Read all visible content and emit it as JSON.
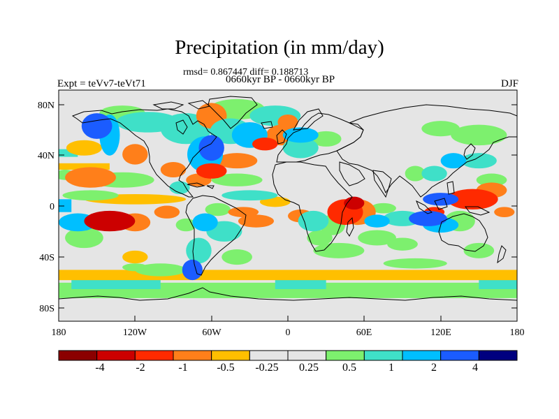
{
  "title": "Precipitation (in mm/day)",
  "stats": "rmsd= 0.867447 diff= 0.188713",
  "period": "0660kyr BP - 0660kyr BP",
  "experiment": "Expt = teVv7-teVt71",
  "season": "DJF",
  "lat_labels": [
    "80N",
    "40N",
    "0",
    "40S",
    "80S"
  ],
  "lon_labels": [
    "180",
    "120W",
    "60W",
    "0",
    "60E",
    "120E",
    "180"
  ],
  "colorbar": {
    "colors": [
      "#8b0000",
      "#cc0000",
      "#ff2a00",
      "#ff7f1a",
      "#ffbf00",
      "#e5e5e5",
      "#e5e5e5",
      "#7df06e",
      "#3fe0c8",
      "#00bfff",
      "#1b5cff",
      "#00007f"
    ],
    "labels": [
      "-4",
      "-2",
      "-1",
      "-0.5",
      "-0.25",
      "0.25",
      "0.5",
      "1",
      "2",
      "4"
    ]
  },
  "chart_data": {
    "type": "heatmap",
    "title": "Precipitation (in mm/day)",
    "variable": "precipitation difference",
    "units": "mm/day",
    "season": "DJF",
    "experiment": "teVv7-teVt71",
    "rmsd": 0.867447,
    "diff": 0.188713,
    "contour_levels": [
      -4,
      -2,
      -1,
      -0.5,
      -0.25,
      0.25,
      0.5,
      1,
      2,
      4
    ],
    "x_range": [
      -180,
      180
    ],
    "y_range": [
      -90,
      90
    ],
    "x_ticks": [
      -180,
      -120,
      -60,
      0,
      60,
      120,
      180
    ],
    "y_ticks": [
      80,
      40,
      0,
      -40,
      -80
    ],
    "blobs": [
      {
        "lon": -150,
        "lat": 62,
        "rx": 12,
        "ry": 10,
        "v": 4
      },
      {
        "lon": -140,
        "lat": 55,
        "rx": 8,
        "ry": 16,
        "v": 2
      },
      {
        "lon": -130,
        "lat": 72,
        "rx": 18,
        "ry": 6,
        "v": 0.5
      },
      {
        "lon": -160,
        "lat": 45,
        "rx": 14,
        "ry": 6,
        "v": -0.5
      },
      {
        "lon": -120,
        "lat": 40,
        "rx": 10,
        "ry": 8,
        "v": -1
      },
      {
        "lon": -110,
        "lat": 65,
        "rx": 25,
        "ry": 8,
        "v": 1
      },
      {
        "lon": -80,
        "lat": 60,
        "rx": 20,
        "ry": 12,
        "v": 1
      },
      {
        "lon": -60,
        "lat": 45,
        "rx": 10,
        "ry": 10,
        "v": 4
      },
      {
        "lon": -65,
        "lat": 40,
        "rx": 14,
        "ry": 14,
        "v": 2
      },
      {
        "lon": -60,
        "lat": 70,
        "rx": 12,
        "ry": 10,
        "v": -1
      },
      {
        "lon": -40,
        "lat": 75,
        "rx": 22,
        "ry": 8,
        "v": 0.5
      },
      {
        "lon": -45,
        "lat": 58,
        "rx": 16,
        "ry": 10,
        "v": 1
      },
      {
        "lon": -30,
        "lat": 55,
        "rx": 14,
        "ry": 10,
        "v": 2
      },
      {
        "lon": -10,
        "lat": 70,
        "rx": 20,
        "ry": 8,
        "v": 1
      },
      {
        "lon": 0,
        "lat": 65,
        "rx": 8,
        "ry": 6,
        "v": -1
      },
      {
        "lon": -5,
        "lat": 55,
        "rx": 12,
        "ry": 8,
        "v": -1
      },
      {
        "lon": -18,
        "lat": 48,
        "rx": 10,
        "ry": 5,
        "v": -2
      },
      {
        "lon": 10,
        "lat": 55,
        "rx": 14,
        "ry": 6,
        "v": 2
      },
      {
        "lon": 10,
        "lat": 45,
        "rx": 14,
        "ry": 8,
        "v": 1
      },
      {
        "lon": 30,
        "lat": 52,
        "rx": 12,
        "ry": 6,
        "v": 0.5
      },
      {
        "lon": -40,
        "lat": 35,
        "rx": 16,
        "ry": 6,
        "v": -1
      },
      {
        "lon": -60,
        "lat": 27,
        "rx": 12,
        "ry": 6,
        "v": -2
      },
      {
        "lon": -90,
        "lat": 28,
        "rx": 10,
        "ry": 6,
        "v": -1
      },
      {
        "lon": -70,
        "lat": 20,
        "rx": 10,
        "ry": 5,
        "v": -1
      },
      {
        "lon": -85,
        "lat": 14,
        "rx": 8,
        "ry": 5,
        "v": 1
      },
      {
        "lon": -130,
        "lat": 20,
        "rx": 25,
        "ry": 6,
        "v": 0.5
      },
      {
        "lon": -155,
        "lat": 22,
        "rx": 20,
        "ry": 8,
        "v": -1
      },
      {
        "lon": -175,
        "lat": 24,
        "rx": 8,
        "ry": 4,
        "v": 0.5
      },
      {
        "lon": -40,
        "lat": 20,
        "rx": 20,
        "ry": 5,
        "v": 0.5
      },
      {
        "lon": -120,
        "lat": 5,
        "rx": 40,
        "ry": 4,
        "v": -0.5
      },
      {
        "lon": -155,
        "lat": 8,
        "rx": 22,
        "ry": 4,
        "v": 0.5
      },
      {
        "lon": -30,
        "lat": 8,
        "rx": 22,
        "ry": 4,
        "v": 1
      },
      {
        "lon": -10,
        "lat": 3,
        "rx": 12,
        "ry": 4,
        "v": -0.5
      },
      {
        "lon": -165,
        "lat": -13,
        "rx": 15,
        "ry": 7,
        "v": 2
      },
      {
        "lon": -140,
        "lat": -12,
        "rx": 20,
        "ry": 8,
        "v": -4
      },
      {
        "lon": -120,
        "lat": -13,
        "rx": 12,
        "ry": 7,
        "v": -1
      },
      {
        "lon": -160,
        "lat": -25,
        "rx": 15,
        "ry": 8,
        "v": 0.5
      },
      {
        "lon": -95,
        "lat": -5,
        "rx": 10,
        "ry": 5,
        "v": -1
      },
      {
        "lon": -80,
        "lat": -15,
        "rx": 8,
        "ry": 5,
        "v": 0.5
      },
      {
        "lon": -65,
        "lat": -13,
        "rx": 10,
        "ry": 7,
        "v": 2
      },
      {
        "lon": -55,
        "lat": -3,
        "rx": 10,
        "ry": 5,
        "v": 0.5
      },
      {
        "lon": -50,
        "lat": -20,
        "rx": 14,
        "ry": 8,
        "v": 1
      },
      {
        "lon": -35,
        "lat": -5,
        "rx": 12,
        "ry": 4,
        "v": -1
      },
      {
        "lon": -25,
        "lat": -12,
        "rx": 14,
        "ry": 5,
        "v": -1
      },
      {
        "lon": -40,
        "lat": -40,
        "rx": 12,
        "ry": 6,
        "v": 0.5
      },
      {
        "lon": -70,
        "lat": -35,
        "rx": 10,
        "ry": 10,
        "v": 1
      },
      {
        "lon": -75,
        "lat": -50,
        "rx": 8,
        "ry": 8,
        "v": 4
      },
      {
        "lon": 10,
        "lat": -8,
        "rx": 10,
        "ry": 5,
        "v": -1
      },
      {
        "lon": 20,
        "lat": -12,
        "rx": 12,
        "ry": 8,
        "v": 1
      },
      {
        "lon": 25,
        "lat": -25,
        "rx": 10,
        "ry": 6,
        "v": 0.5
      },
      {
        "lon": 35,
        "lat": -15,
        "rx": 10,
        "ry": 8,
        "v": 0.5
      },
      {
        "lon": 45,
        "lat": -5,
        "rx": 14,
        "ry": 10,
        "v": -2
      },
      {
        "lon": 55,
        "lat": -5,
        "rx": 14,
        "ry": 10,
        "v": -1
      },
      {
        "lon": 52,
        "lat": 2,
        "rx": 8,
        "ry": 5,
        "v": -4
      },
      {
        "lon": 70,
        "lat": -12,
        "rx": 10,
        "ry": 5,
        "v": 2
      },
      {
        "lon": 75,
        "lat": -2,
        "rx": 10,
        "ry": 4,
        "v": 0.5
      },
      {
        "lon": 70,
        "lat": -25,
        "rx": 15,
        "ry": 6,
        "v": 0.5
      },
      {
        "lon": 40,
        "lat": -35,
        "rx": 20,
        "ry": 6,
        "v": 0.5
      },
      {
        "lon": 90,
        "lat": -10,
        "rx": 15,
        "ry": 6,
        "v": 1
      },
      {
        "lon": 110,
        "lat": -10,
        "rx": 15,
        "ry": 6,
        "v": 4
      },
      {
        "lon": 120,
        "lat": -15,
        "rx": 14,
        "ry": 6,
        "v": 2
      },
      {
        "lon": 135,
        "lat": -12,
        "rx": 12,
        "ry": 8,
        "v": 0.5
      },
      {
        "lon": 115,
        "lat": -5,
        "rx": 8,
        "ry": 4,
        "v": -2
      },
      {
        "lon": 120,
        "lat": 5,
        "rx": 14,
        "ry": 5,
        "v": 4
      },
      {
        "lon": 145,
        "lat": 5,
        "rx": 20,
        "ry": 8,
        "v": -2
      },
      {
        "lon": 160,
        "lat": 12,
        "rx": 12,
        "ry": 6,
        "v": -1
      },
      {
        "lon": 170,
        "lat": -5,
        "rx": 8,
        "ry": 4,
        "v": -1
      },
      {
        "lon": 115,
        "lat": 25,
        "rx": 10,
        "ry": 6,
        "v": 1
      },
      {
        "lon": 130,
        "lat": 35,
        "rx": 10,
        "ry": 6,
        "v": 2
      },
      {
        "lon": 150,
        "lat": 35,
        "rx": 14,
        "ry": 6,
        "v": 1
      },
      {
        "lon": 160,
        "lat": 20,
        "rx": 12,
        "ry": 5,
        "v": 0.5
      },
      {
        "lon": 150,
        "lat": 55,
        "rx": 22,
        "ry": 8,
        "v": 0.5
      },
      {
        "lon": 120,
        "lat": 60,
        "rx": 15,
        "ry": 6,
        "v": 0.5
      },
      {
        "lon": 100,
        "lat": 25,
        "rx": 8,
        "ry": 6,
        "v": 0.5
      },
      {
        "lon": 90,
        "lat": -30,
        "rx": 12,
        "ry": 5,
        "v": 0.5
      },
      {
        "lon": 150,
        "lat": -35,
        "rx": 12,
        "ry": 6,
        "v": 0.5
      },
      {
        "lon": -100,
        "lat": -50,
        "rx": 20,
        "ry": 5,
        "v": 0.5
      },
      {
        "lon": 100,
        "lat": -45,
        "rx": 25,
        "ry": 4,
        "v": 0.5
      },
      {
        "lon": -120,
        "lat": -40,
        "rx": 10,
        "ry": 5,
        "v": -0.5
      },
      {
        "lon": -120,
        "lat": -48,
        "rx": 10,
        "ry": 3,
        "v": 0.5
      }
    ],
    "bands": [
      {
        "lat_min": -72,
        "lat_max": -60,
        "lon_min": -180,
        "lon_max": 180,
        "v": 0.5
      },
      {
        "lat_min": -65,
        "lat_max": -55,
        "lon_min": -170,
        "lon_max": -100,
        "v": 1
      },
      {
        "lat_min": -65,
        "lat_max": -57,
        "lon_min": -10,
        "lon_max": 30,
        "v": 1
      },
      {
        "lat_min": -65,
        "lat_max": -57,
        "lon_min": 150,
        "lon_max": 180,
        "v": 1
      },
      {
        "lat_min": -58,
        "lat_max": -50,
        "lon_min": -180,
        "lon_max": 180,
        "v": -0.5
      },
      {
        "lat_min": -5,
        "lat_max": 5,
        "lon_min": -180,
        "lon_max": -170,
        "v": 2
      },
      {
        "lat_min": 38,
        "lat_max": 44,
        "lon_min": -180,
        "lon_max": -165,
        "v": 1
      },
      {
        "lat_min": 28,
        "lat_max": 33,
        "lon_min": -180,
        "lon_max": -140,
        "v": -0.5
      }
    ]
  }
}
